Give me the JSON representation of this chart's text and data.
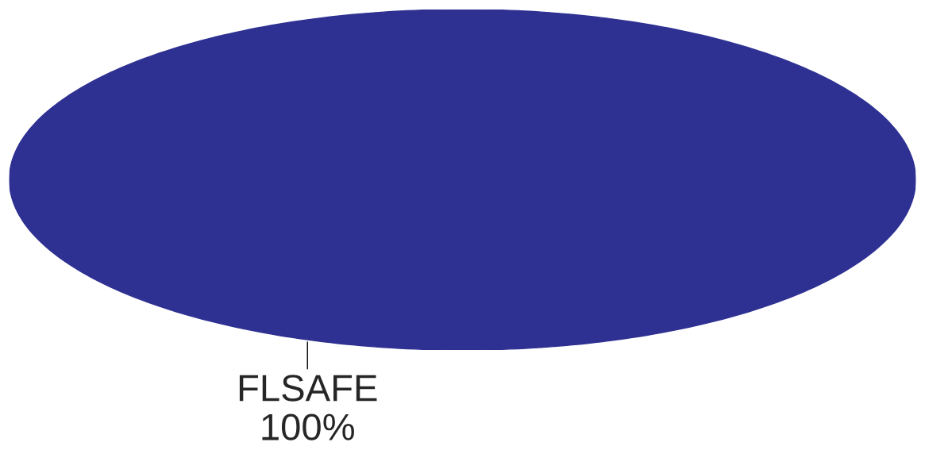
{
  "chart_data": {
    "type": "pie",
    "categories": [
      "FLSAFE"
    ],
    "values": [
      100
    ],
    "value_labels": [
      "100%"
    ],
    "colors": [
      "#2e3192"
    ]
  }
}
